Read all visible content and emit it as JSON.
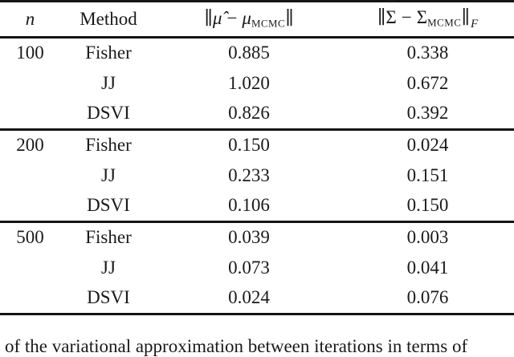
{
  "page": {
    "background": "#ffffff",
    "text_color": "#1a1a1a",
    "rule_color": "#141414"
  },
  "table": {
    "headers": {
      "n": "n",
      "method": "Method",
      "mu_col": {
        "open": "∥",
        "mu_hat": "μ̂",
        "minus": "−",
        "mu": "μ",
        "sub": "MCMC",
        "close": "∥"
      },
      "sigma_col": {
        "open": "∥",
        "hat": "ˆ",
        "sigma": "Σ",
        "minus": "−",
        "sigma2": "Σ",
        "sub": "MCMC",
        "close": "∥",
        "f_sub": "F"
      }
    },
    "groups": [
      {
        "n": "100",
        "rows": [
          [
            "Fisher",
            "0.885",
            "0.338"
          ],
          [
            "JJ",
            "1.020",
            "0.672"
          ],
          [
            "DSVI",
            "0.826",
            "0.392"
          ]
        ]
      },
      {
        "n": "200",
        "rows": [
          [
            "Fisher",
            "0.150",
            "0.024"
          ],
          [
            "JJ",
            "0.233",
            "0.151"
          ],
          [
            "DSVI",
            "0.106",
            "0.150"
          ]
        ]
      },
      {
        "n": "500",
        "rows": [
          [
            "Fisher",
            "0.039",
            "0.003"
          ],
          [
            "JJ",
            "0.073",
            "0.041"
          ],
          [
            "DSVI",
            "0.024",
            "0.076"
          ]
        ]
      }
    ]
  },
  "caption_fragment": "of the variational approximation between iterations in terms of"
}
